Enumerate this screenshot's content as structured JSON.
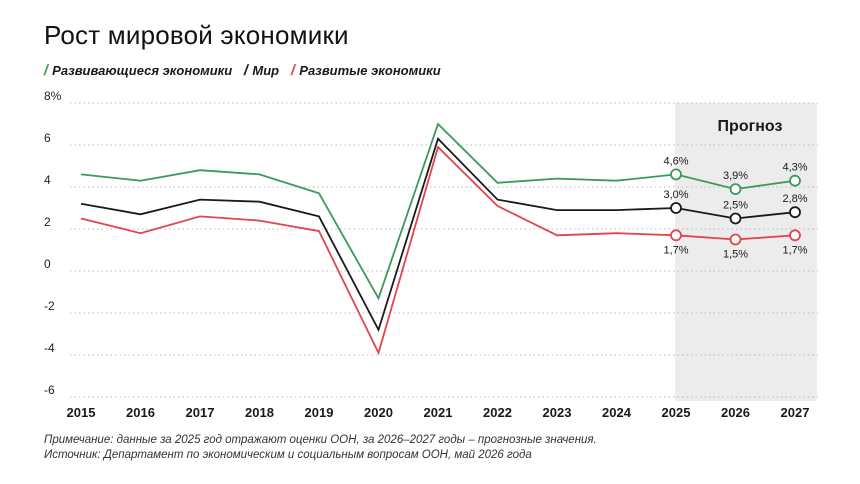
{
  "chart_data": {
    "type": "line",
    "title": "Рост мировой экономики",
    "x": [
      2015,
      2016,
      2017,
      2018,
      2019,
      2020,
      2021,
      2022,
      2023,
      2024,
      2025,
      2026,
      2027
    ],
    "xlabels": [
      "2015",
      "2016",
      "2017",
      "2018",
      "2019",
      "2020",
      "2021",
      "2022",
      "2023",
      "2024",
      "2025",
      "2026",
      "2027"
    ],
    "ylim": [
      -6,
      8
    ],
    "yticks": [
      -6,
      -4,
      -2,
      0,
      2,
      4,
      6,
      8
    ],
    "ytick_labels": [
      "-6",
      "-4",
      "-2",
      "0",
      "2",
      "4",
      "6",
      "8%"
    ],
    "grid": true,
    "legend_position": "top-left",
    "forecast": {
      "label": "Прогноз",
      "from": 2025,
      "to": 2027
    },
    "series": [
      {
        "name": "Развивающиеся экономики",
        "color": "#3a9a5c",
        "values": [
          4.6,
          4.3,
          4.8,
          4.6,
          3.7,
          -1.3,
          7.0,
          4.2,
          4.4,
          4.3,
          4.6,
          3.9,
          4.3
        ],
        "labels": {
          "2025": "4,6%",
          "2026": "3,9%",
          "2027": "4,3%"
        },
        "label_pos": "above"
      },
      {
        "name": "Мир",
        "color": "#1a1a1a",
        "values": [
          3.2,
          2.7,
          3.4,
          3.3,
          2.6,
          -2.8,
          6.3,
          3.4,
          2.9,
          2.9,
          3.0,
          2.5,
          2.8
        ],
        "labels": {
          "2025": "3,0%",
          "2026": "2,5%",
          "2027": "2,8%"
        },
        "label_pos": "above"
      },
      {
        "name": "Развитые экономики",
        "color": "#e0454f",
        "values": [
          2.5,
          1.8,
          2.6,
          2.4,
          1.9,
          -3.9,
          5.9,
          3.1,
          1.7,
          1.8,
          1.7,
          1.5,
          1.7
        ],
        "labels": {
          "2025": "1,7%",
          "2026": "1,5%",
          "2027": "1,7%"
        },
        "label_pos": "below"
      }
    ]
  },
  "note": {
    "line1": "Примечание: данные за 2025 год отражают оценки ООН, за 2026–2027 годы – прогнозные значения.",
    "line2": "Источник: Департамент по экономическим и социальным вопросам ООН, май 2026 года"
  }
}
